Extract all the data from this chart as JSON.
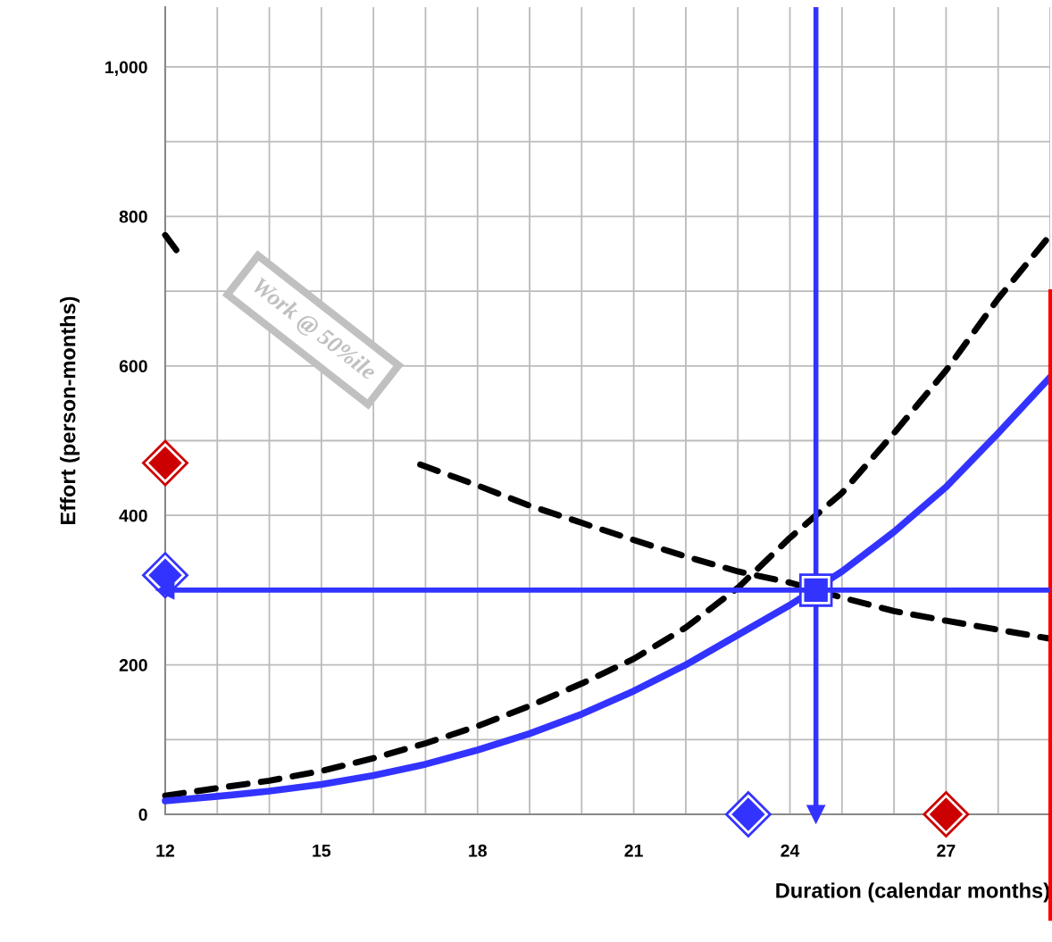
{
  "chart_data": {
    "type": "line",
    "xlabel": "Duration (calendar months)",
    "ylabel": "Effort (person-months)",
    "xlim": [
      12,
      29
    ],
    "ylim": [
      0,
      1080
    ],
    "xticks": [
      12,
      {
        "value": 13,
        "label": null
      },
      {
        "value": 14,
        "label": null
      },
      15,
      {
        "value": 16,
        "label": null
      },
      {
        "value": 17,
        "label": null
      },
      18,
      {
        "value": 19,
        "label": null
      },
      {
        "value": 20,
        "label": null
      },
      21,
      {
        "value": 22,
        "label": null
      },
      {
        "value": 23,
        "label": null
      },
      24,
      {
        "value": 25,
        "label": null
      },
      {
        "value": 26,
        "label": null
      },
      27,
      {
        "value": 28,
        "label": null
      },
      {
        "value": 29,
        "label": null
      }
    ],
    "yticks": [
      0,
      {
        "value": 100,
        "label": null
      },
      200,
      400,
      {
        "value": 500,
        "label": null
      },
      600,
      {
        "value": 700,
        "label": null
      },
      800,
      {
        "value": 900,
        "label": null
      },
      {
        "value": 1000,
        "label": "1,000"
      }
    ],
    "grid": true,
    "series": [
      {
        "color": "#000000",
        "line_style": "dashed",
        "x": [
          12,
          12.34,
          14.6,
          16.9,
          18,
          19,
          20,
          21,
          22,
          23,
          24,
          25,
          26,
          27,
          28,
          29
        ],
        "values": [
          775,
          743,
          null,
          468,
          440,
          413,
          390,
          367,
          345,
          325,
          310,
          290,
          272,
          259,
          247,
          235
        ]
      },
      {
        "color": "#000000",
        "line_style": "dashed",
        "x": [
          12,
          13,
          14,
          15,
          16,
          17,
          18,
          19,
          20,
          21,
          22,
          23,
          24,
          25,
          26,
          27,
          28,
          29
        ],
        "values": [
          25,
          35,
          45,
          58,
          75,
          95,
          118,
          145,
          175,
          208,
          250,
          303,
          370,
          430,
          510,
          594,
          690,
          775
        ]
      },
      {
        "color": "#3333ff",
        "line_style": "solid",
        "x": [
          12,
          13,
          14,
          15,
          16,
          17,
          18,
          19,
          20,
          21,
          22,
          23,
          24,
          25,
          26,
          27,
          28,
          29
        ],
        "values": [
          18,
          24,
          31,
          40,
          52,
          67,
          86,
          108,
          134,
          165,
          200,
          240,
          280,
          325,
          378,
          438,
          510,
          585
        ]
      },
      {
        "type": "scatter",
        "marker": "diamond",
        "x": [
          12,
          12,
          23.2,
          27
        ],
        "values": [
          470,
          320,
          0,
          0
        ],
        "colors": [
          "#cc0000",
          "#3333ff",
          "#3333ff",
          "#cc0000"
        ]
      },
      {
        "type": "scatter",
        "marker": "square",
        "x": [
          24.5
        ],
        "values": [
          300
        ],
        "colors": [
          "#3333ff"
        ]
      }
    ],
    "ref_lines": [
      {
        "axis": "y",
        "value": 300,
        "color": "#3333ff"
      },
      {
        "axis": "x",
        "value": 24.5,
        "color": "#3333ff"
      },
      {
        "axis": "x",
        "value": 29,
        "color": "#ff0000"
      }
    ],
    "annotations": [
      "Work @ 50%ile"
    ]
  }
}
